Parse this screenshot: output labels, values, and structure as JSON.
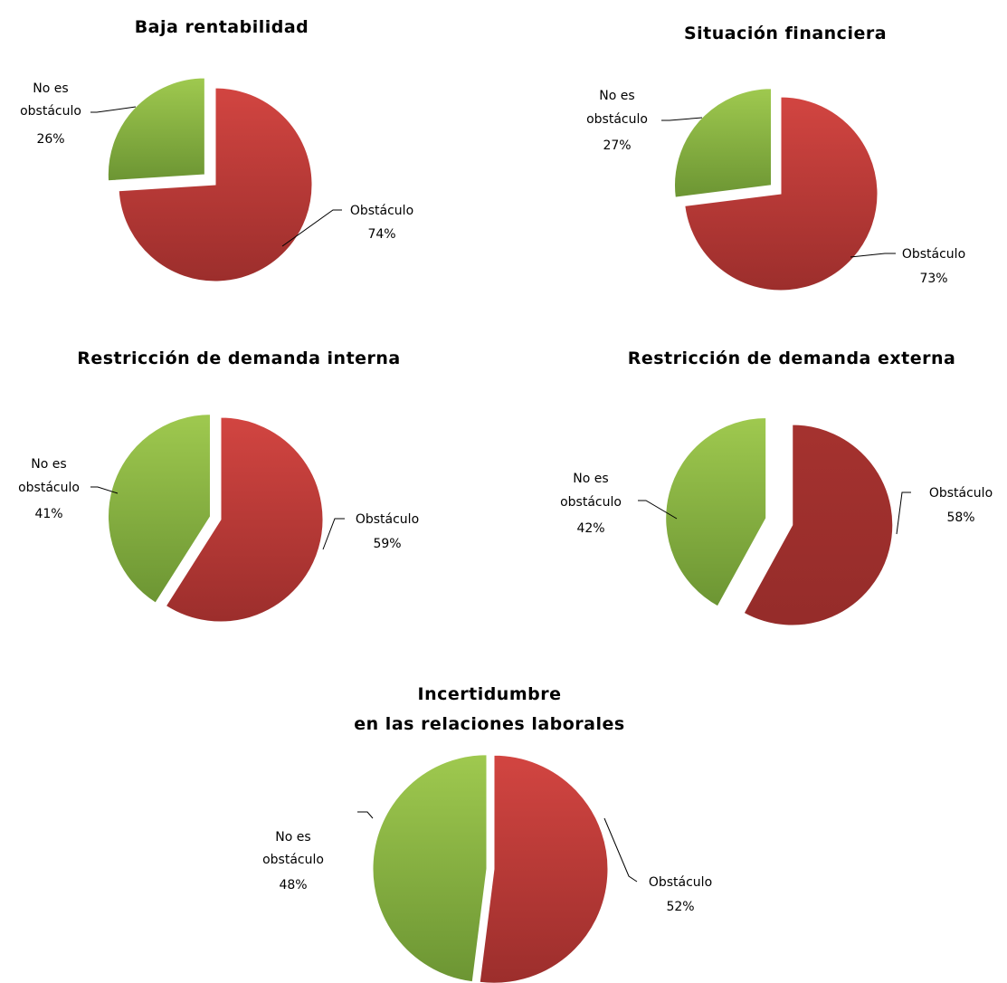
{
  "chart_data": [
    {
      "type": "pie",
      "title": "Baja rentabilidad",
      "slices": [
        {
          "label": "Obstáculo",
          "value": 74,
          "pct_label": "74%",
          "color": "#b83a36"
        },
        {
          "label": "No es obstáculo",
          "value": 26,
          "pct_label": "26%",
          "color": "#8ab548"
        }
      ]
    },
    {
      "type": "pie",
      "title": "Situación financiera",
      "slices": [
        {
          "label": "Obstáculo",
          "value": 73,
          "pct_label": "73%",
          "color": "#b83a36"
        },
        {
          "label": "No es obstáculo",
          "value": 27,
          "pct_label": "27%",
          "color": "#8ab548"
        }
      ]
    },
    {
      "type": "pie",
      "title": "Restricción de demanda interna",
      "slices": [
        {
          "label": "Obstáculo",
          "value": 59,
          "pct_label": "59%",
          "color": "#b83a36"
        },
        {
          "label": "No es obstáculo",
          "value": 41,
          "pct_label": "41%",
          "color": "#8ab548"
        }
      ]
    },
    {
      "type": "pie",
      "title": "Restricción de demanda externa",
      "slices": [
        {
          "label": "Obstáculo",
          "value": 58,
          "pct_label": "58%",
          "color": "#a0302e"
        },
        {
          "label": "No es obstáculo",
          "value": 42,
          "pct_label": "42%",
          "color": "#8ab548"
        }
      ]
    },
    {
      "type": "pie",
      "title": "Incertidumbre\nen las relaciones laborales",
      "slices": [
        {
          "label": "Obstáculo",
          "value": 52,
          "pct_label": "52%",
          "color": "#b83a36"
        },
        {
          "label": "No es obstáculo",
          "value": 48,
          "pct_label": "48%",
          "color": "#8ab548"
        }
      ]
    }
  ]
}
